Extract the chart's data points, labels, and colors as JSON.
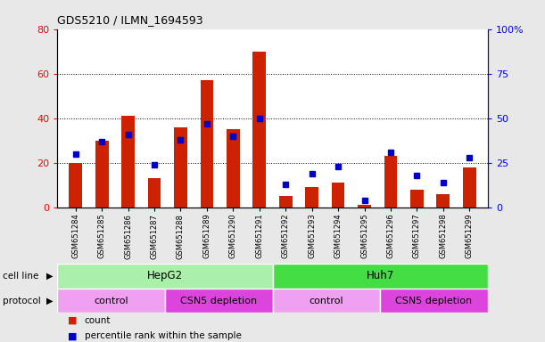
{
  "title": "GDS5210 / ILMN_1694593",
  "samples": [
    "GSM651284",
    "GSM651285",
    "GSM651286",
    "GSM651287",
    "GSM651288",
    "GSM651289",
    "GSM651290",
    "GSM651291",
    "GSM651292",
    "GSM651293",
    "GSM651294",
    "GSM651295",
    "GSM651296",
    "GSM651297",
    "GSM651298",
    "GSM651299"
  ],
  "counts": [
    20,
    30,
    41,
    13,
    36,
    57,
    35,
    70,
    5,
    9,
    11,
    1,
    23,
    8,
    6,
    18
  ],
  "percentile_ranks": [
    30,
    37,
    41,
    24,
    38,
    47,
    40,
    50,
    13,
    19,
    23,
    4,
    31,
    18,
    14,
    28
  ],
  "bar_color": "#cc2200",
  "marker_color": "#0000cc",
  "left_ylim": [
    0,
    80
  ],
  "right_ylim": [
    0,
    100
  ],
  "left_yticks": [
    0,
    20,
    40,
    60,
    80
  ],
  "right_yticks": [
    0,
    25,
    50,
    75,
    100
  ],
  "right_yticklabels": [
    "0",
    "25",
    "50",
    "75",
    "100%"
  ],
  "cell_line_groups": [
    {
      "label": "HepG2",
      "start": 0,
      "end": 8,
      "color": "#aaf0aa"
    },
    {
      "label": "Huh7",
      "start": 8,
      "end": 16,
      "color": "#44dd44"
    }
  ],
  "protocol_groups": [
    {
      "label": "control",
      "start": 0,
      "end": 4,
      "color": "#f0a0f0"
    },
    {
      "label": "CSN5 depletion",
      "start": 4,
      "end": 8,
      "color": "#dd44dd"
    },
    {
      "label": "control",
      "start": 8,
      "end": 12,
      "color": "#f0a0f0"
    },
    {
      "label": "CSN5 depletion",
      "start": 12,
      "end": 16,
      "color": "#dd44dd"
    }
  ],
  "cell_line_label": "cell line",
  "protocol_label": "protocol",
  "legend_count_label": "count",
  "legend_pct_label": "percentile rank within the sample",
  "fig_bg_color": "#e8e8e8",
  "plot_bg_color": "#ffffff",
  "bar_width": 0.5,
  "marker_size": 5,
  "dotted_lines": [
    20,
    40,
    60
  ]
}
